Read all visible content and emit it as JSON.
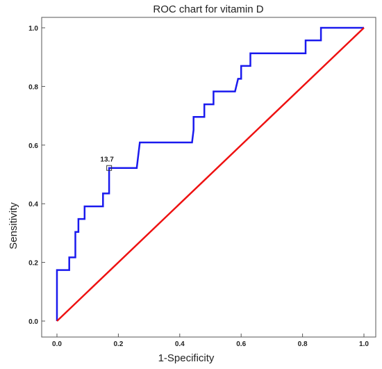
{
  "chart_data": {
    "type": "line",
    "title": "ROC chart for vitamin D",
    "xlabel": "1-Specificity",
    "ylabel": "Sensitivity",
    "xlim": [
      0,
      1
    ],
    "ylim": [
      0,
      1
    ],
    "xticks": [
      "0.0",
      "0.2",
      "0.4",
      "0.6",
      "0.8",
      "1.0"
    ],
    "yticks": [
      "0.0",
      "0.2",
      "0.4",
      "0.6",
      "0.8",
      "1.0"
    ],
    "grid": false,
    "series": [
      {
        "color": "#1a1aee",
        "points": [
          [
            0.0,
            0.0
          ],
          [
            0.0,
            0.174
          ],
          [
            0.04,
            0.174
          ],
          [
            0.04,
            0.217
          ],
          [
            0.06,
            0.217
          ],
          [
            0.06,
            0.304
          ],
          [
            0.07,
            0.304
          ],
          [
            0.07,
            0.348
          ],
          [
            0.09,
            0.348
          ],
          [
            0.09,
            0.391
          ],
          [
            0.15,
            0.391
          ],
          [
            0.15,
            0.435
          ],
          [
            0.17,
            0.435
          ],
          [
            0.17,
            0.522
          ],
          [
            0.26,
            0.522
          ],
          [
            0.27,
            0.609
          ],
          [
            0.44,
            0.609
          ],
          [
            0.445,
            0.652
          ],
          [
            0.445,
            0.696
          ],
          [
            0.48,
            0.696
          ],
          [
            0.48,
            0.739
          ],
          [
            0.51,
            0.739
          ],
          [
            0.51,
            0.783
          ],
          [
            0.58,
            0.783
          ],
          [
            0.59,
            0.826
          ],
          [
            0.6,
            0.826
          ],
          [
            0.6,
            0.87
          ],
          [
            0.63,
            0.87
          ],
          [
            0.63,
            0.913
          ],
          [
            0.81,
            0.913
          ],
          [
            0.81,
            0.957
          ],
          [
            0.86,
            0.957
          ],
          [
            0.86,
            1.0
          ],
          [
            1.0,
            1.0
          ]
        ]
      },
      {
        "color": "#ee1111",
        "points": [
          [
            0.0,
            0.0
          ],
          [
            1.0,
            1.0
          ]
        ]
      }
    ],
    "annotations": [
      {
        "text": "13.7",
        "x": 0.17,
        "y": 0.522
      }
    ]
  }
}
